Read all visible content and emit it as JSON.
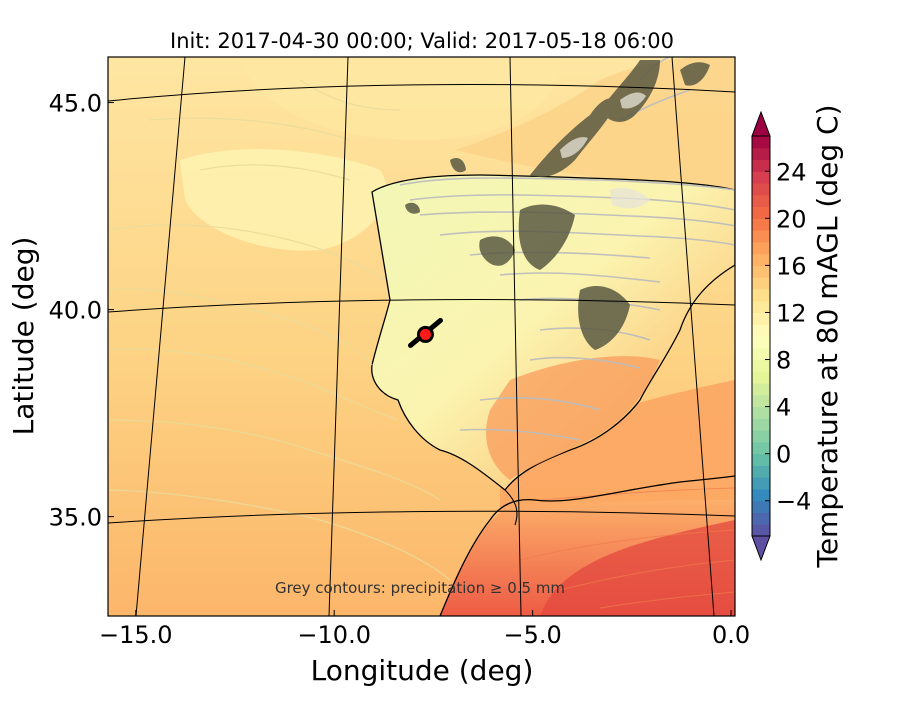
{
  "title": "Init: 2017-04-30 00:00; Valid: 2017-05-18 06:00",
  "annotation": "Grey contours: precipitation ≥ 0.5 mm",
  "x_axis": {
    "label": "Longitude (deg)",
    "ticks": [
      {
        "value": -15.0,
        "label": "−15.0"
      },
      {
        "value": -10.0,
        "label": "−10.0"
      },
      {
        "value": -5.0,
        "label": "−5.0"
      },
      {
        "value": 0.0,
        "label": "0.0"
      }
    ],
    "range": [
      -15.7,
      0.1
    ]
  },
  "y_axis": {
    "label": "Latitude (deg)",
    "ticks": [
      {
        "value": 45.0,
        "label": "45.0"
      },
      {
        "value": 40.0,
        "label": "40.0"
      },
      {
        "value": 35.0,
        "label": "35.0"
      }
    ],
    "range": [
      32.6,
      46.1
    ]
  },
  "colorbar": {
    "label": "Temperature at 80 mAGL (deg C)",
    "min": -7,
    "max": 27,
    "step": 1,
    "ticks": [
      {
        "value": -4,
        "label": "−4"
      },
      {
        "value": 0,
        "label": "0"
      },
      {
        "value": 4,
        "label": "4"
      },
      {
        "value": 8,
        "label": "8"
      },
      {
        "value": 12,
        "label": "12"
      },
      {
        "value": 16,
        "label": "16"
      },
      {
        "value": 20,
        "label": "20"
      },
      {
        "value": 24,
        "label": "24"
      }
    ],
    "extend": "both",
    "colormap": "Spectral_r"
  },
  "marker": {
    "lon": -7.7,
    "lat": 39.4,
    "color": "#ff1a1a",
    "line_color": "#000000"
  },
  "colors": {
    "ocean_warm": "#fdbf6f",
    "ocean_cool": "#fee8a0",
    "land_cool": "#f4f9b8",
    "land_warm": "#f98e52",
    "precip_contour": "#bebebe",
    "terrain_dark": "#55553f"
  }
}
